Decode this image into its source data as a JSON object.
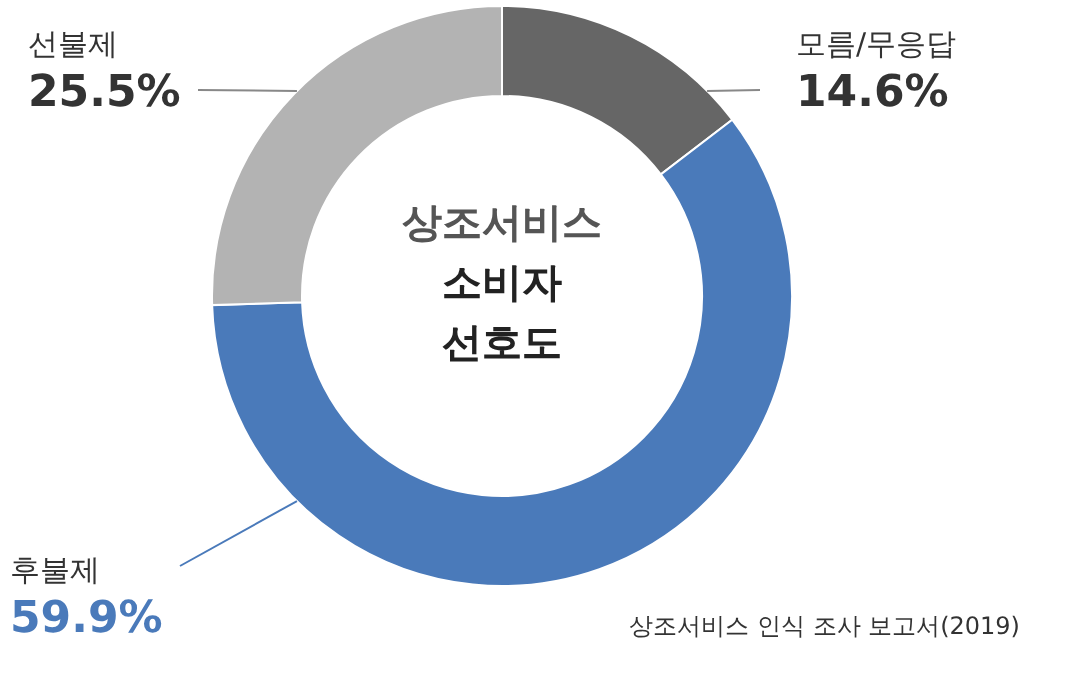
{
  "chart_data": {
    "type": "donut",
    "title": "상조서비스 소비자 선호도",
    "categories": [
      "모름/무응답",
      "후불제",
      "선불제"
    ],
    "values": [
      14.6,
      59.9,
      25.5
    ],
    "colors": [
      "#666666",
      "#4a7aba",
      "#b3b3b3"
    ],
    "value_labels": [
      "14.6%",
      "59.9%",
      "25.5%"
    ],
    "annotations": [
      "상조서비스 인식 조사 보고서(2019)"
    ]
  }
}
